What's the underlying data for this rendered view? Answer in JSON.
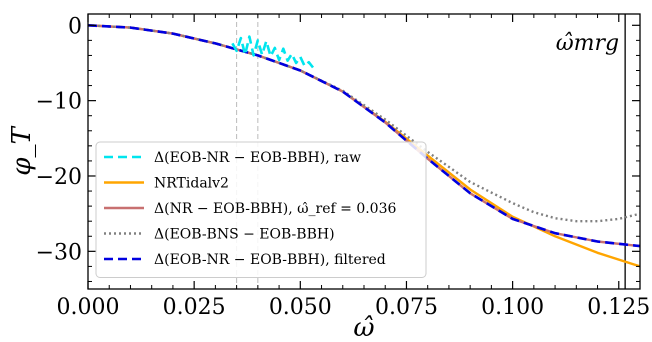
{
  "chart_data": {
    "type": "line",
    "title": "",
    "xlabel": "ω̂",
    "ylabel": "φ_T",
    "xlim": [
      0.0,
      0.13
    ],
    "ylim": [
      -35,
      1.5
    ],
    "xticks": [
      0.0,
      0.025,
      0.05,
      0.075,
      0.1,
      0.125
    ],
    "xtick_labels": [
      "0.000",
      "0.025",
      "0.050",
      "0.075",
      "0.100",
      "0.125"
    ],
    "yticks": [
      0,
      -10,
      -20,
      -30
    ],
    "ytick_labels": [
      "0",
      "−10",
      "−20",
      "−30"
    ],
    "grid": false,
    "legend_position": "lower-left",
    "annotations": {
      "merger_label": "ω̂mrg",
      "merger_x": 0.1265,
      "window_lines_x": [
        0.035,
        0.04
      ]
    },
    "series": [
      {
        "name": "Δ(EOB-NR − EOB-BBH), raw",
        "color": "#00e5ee",
        "style": "dashed",
        "x": [
          0.034,
          0.035,
          0.036,
          0.037,
          0.038,
          0.039,
          0.04,
          0.041,
          0.042,
          0.043,
          0.044,
          0.045,
          0.046,
          0.047,
          0.048,
          0.049,
          0.05,
          0.051,
          0.052,
          0.053
        ],
        "y": [
          -2.4,
          -3.4,
          -1.7,
          -3.9,
          -1.5,
          -4.0,
          -2.0,
          -3.9,
          -2.1,
          -4.1,
          -3.0,
          -4.6,
          -3.1,
          -4.7,
          -3.8,
          -5.0,
          -4.2,
          -5.4,
          -4.9,
          -5.6
        ]
      },
      {
        "name": "NRTidalv2",
        "color": "#ffa500",
        "style": "solid",
        "x": [
          0.0,
          0.01,
          0.02,
          0.03,
          0.04,
          0.05,
          0.06,
          0.07,
          0.08,
          0.09,
          0.1,
          0.11,
          0.12,
          0.13
        ],
        "y": [
          0.0,
          -0.3,
          -1.1,
          -2.4,
          -4.0,
          -6.0,
          -8.8,
          -12.8,
          -17.3,
          -21.8,
          -25.4,
          -28.0,
          -30.2,
          -32.0
        ]
      },
      {
        "name": "Δ(NR − EOB-BBH), ω̂_ref = 0.036",
        "color": "#c87070",
        "style": "solid",
        "x": [
          0.0,
          0.01,
          0.02,
          0.03,
          0.04,
          0.05,
          0.06,
          0.07,
          0.08,
          0.09,
          0.1,
          0.11,
          0.12,
          0.13
        ],
        "y": [
          0.0,
          -0.3,
          -1.1,
          -2.4,
          -4.0,
          -6.0,
          -8.8,
          -12.9,
          -17.7,
          -22.3,
          -25.7,
          -27.6,
          -28.7,
          -29.3
        ]
      },
      {
        "name": "Δ(EOB-BNS − EOB-BBH)",
        "color": "#808080",
        "style": "dotted",
        "x": [
          0.0,
          0.01,
          0.02,
          0.03,
          0.04,
          0.05,
          0.06,
          0.07,
          0.08,
          0.09,
          0.1,
          0.105,
          0.11,
          0.115,
          0.12,
          0.125,
          0.13
        ],
        "y": [
          0.0,
          -0.3,
          -1.1,
          -2.4,
          -4.0,
          -6.0,
          -8.7,
          -12.5,
          -16.8,
          -20.8,
          -23.6,
          -24.8,
          -25.6,
          -26.0,
          -26.0,
          -25.7,
          -25.0
        ]
      },
      {
        "name": "Δ(EOB-NR − EOB-BBH), filtered",
        "color": "#0000e0",
        "style": "dashed",
        "x": [
          0.0,
          0.01,
          0.02,
          0.03,
          0.04,
          0.05,
          0.06,
          0.07,
          0.08,
          0.09,
          0.1,
          0.11,
          0.12,
          0.13
        ],
        "y": [
          0.0,
          -0.3,
          -1.1,
          -2.4,
          -4.0,
          -6.0,
          -8.8,
          -12.9,
          -17.7,
          -22.3,
          -25.7,
          -27.6,
          -28.7,
          -29.3
        ]
      }
    ]
  }
}
